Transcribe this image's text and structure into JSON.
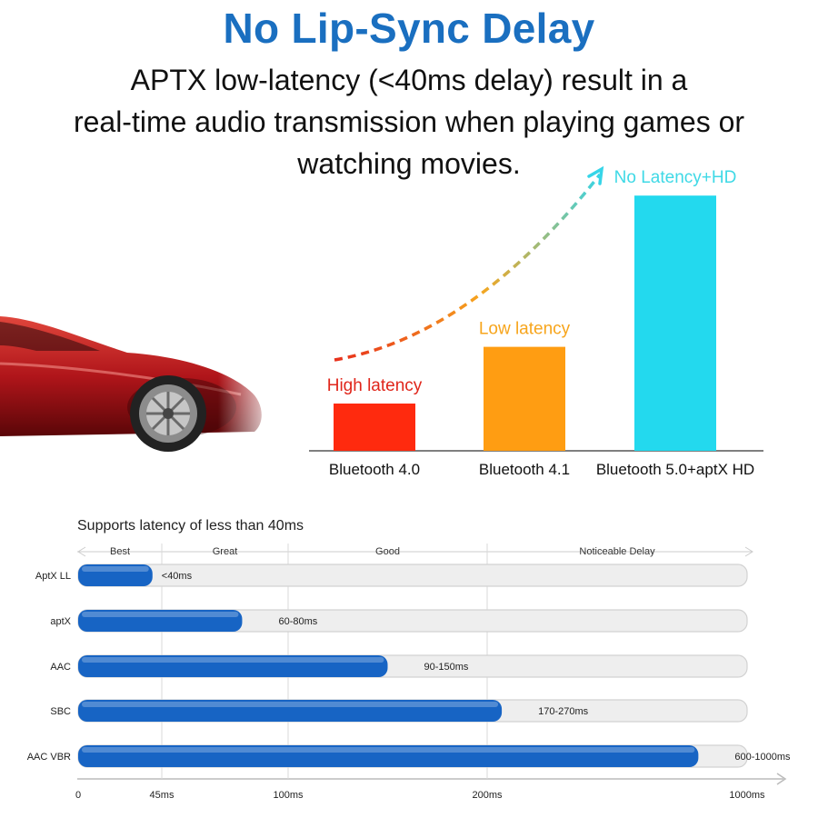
{
  "header": {
    "title": "No Lip-Sync Delay",
    "subtitle_lines": [
      "APTX low-latency (<40ms delay) result in a",
      "real-time audio transmission when playing games or",
      "watching movies."
    ]
  },
  "colors": {
    "title": "#1a6fc0",
    "bar_high": "#ff2a0e",
    "bar_low": "#ff9d12",
    "bar_hd": "#23d9ee",
    "label_high": "#e0261b",
    "label_low": "#f7a51c",
    "label_hd": "#3fd9e6",
    "progress_fill": "#1764c4",
    "progress_track": "#eeeeee"
  },
  "chart_data": [
    {
      "type": "bar",
      "categories": [
        "Bluetooth 4.0",
        "Bluetooth 4.1",
        "Bluetooth 5.0+aptX HD"
      ],
      "bar_labels": [
        "High latency",
        "Low latency",
        "No Latency+HD"
      ],
      "values": [
        1,
        2.2,
        5.4
      ],
      "axes_shown": false,
      "trend_arrow": true
    },
    {
      "type": "bar",
      "orientation": "horizontal",
      "title": "Supports latency of less than 40ms",
      "categories": [
        "AptX LL",
        "aptX",
        "AAC",
        "SBC",
        "AAC VBR"
      ],
      "value_labels": [
        "<40ms",
        "60-80ms",
        "90-150ms",
        "170-270ms",
        "600-1000ms"
      ],
      "values": [
        40,
        80,
        150,
        245,
        850
      ],
      "x_ticks": [
        {
          "value": 0,
          "label": "0"
        },
        {
          "value": 45,
          "label": "45ms"
        },
        {
          "value": 100,
          "label": "100ms"
        },
        {
          "value": 200,
          "label": "200ms"
        },
        {
          "value": 1000,
          "label": "1000ms"
        }
      ],
      "zones": [
        {
          "label": "Best",
          "from": 0,
          "to": 45
        },
        {
          "label": "Great",
          "from": 45,
          "to": 100
        },
        {
          "label": "Good",
          "from": 100,
          "to": 200
        },
        {
          "label": "Noticeable Delay",
          "from": 200,
          "to": 1000
        }
      ],
      "xlim": [
        0,
        1000
      ],
      "scale": "piecewise"
    }
  ]
}
